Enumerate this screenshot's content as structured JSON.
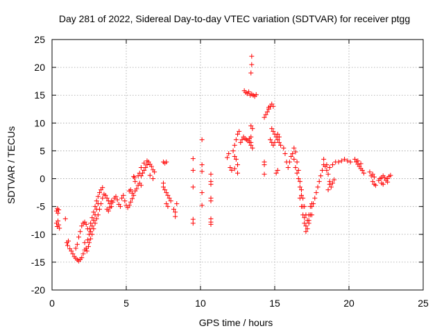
{
  "chart_data": {
    "type": "scatter",
    "title": "Day 281 of 2022, Sidereal Day-to-day VTEC variation (SDTVAR) for receiver ptgg",
    "xlabel": "GPS time / hours",
    "ylabel": "SDTVAR / TECUs",
    "xlim": [
      0,
      25
    ],
    "ylim": [
      -20,
      25
    ],
    "xticks": [
      0,
      5,
      10,
      15,
      20,
      25
    ],
    "yticks": [
      -20,
      -15,
      -10,
      -5,
      0,
      5,
      10,
      15,
      20,
      25
    ],
    "grid": true,
    "marker": "+",
    "color": "#ff0000",
    "series": [
      {
        "name": "SDTVAR",
        "points": [
          [
            0.3,
            -5.8
          ],
          [
            0.35,
            -5.4
          ],
          [
            0.4,
            -6.2
          ],
          [
            0.45,
            -5.6
          ],
          [
            0.3,
            -8.0
          ],
          [
            0.35,
            -8.6
          ],
          [
            0.4,
            -7.6
          ],
          [
            0.45,
            -8.3
          ],
          [
            0.5,
            -8.9
          ],
          [
            0.9,
            -7.2
          ],
          [
            1.0,
            -11.5
          ],
          [
            1.05,
            -12.0
          ],
          [
            1.1,
            -11.2
          ],
          [
            1.2,
            -12.6
          ],
          [
            1.3,
            -13.0
          ],
          [
            1.4,
            -13.5
          ],
          [
            1.5,
            -14.0
          ],
          [
            1.6,
            -14.3
          ],
          [
            1.7,
            -14.6
          ],
          [
            1.8,
            -14.8
          ],
          [
            1.9,
            -14.5
          ],
          [
            2.0,
            -14.2
          ],
          [
            2.1,
            -13.5
          ],
          [
            2.2,
            -12.8
          ],
          [
            1.6,
            -12.5
          ],
          [
            1.7,
            -11.8
          ],
          [
            1.8,
            -10.5
          ],
          [
            1.9,
            -9.5
          ],
          [
            2.0,
            -8.5
          ],
          [
            2.1,
            -8.0
          ],
          [
            2.2,
            -7.8
          ],
          [
            2.3,
            -8.2
          ],
          [
            2.4,
            -9.0
          ],
          [
            2.2,
            -11.5
          ],
          [
            2.3,
            -12.5
          ],
          [
            2.4,
            -11.0
          ],
          [
            2.5,
            -10.0
          ],
          [
            2.55,
            -9.0
          ],
          [
            2.6,
            -8.0
          ],
          [
            2.7,
            -7.0
          ],
          [
            2.8,
            -6.0
          ],
          [
            2.9,
            -5.0
          ],
          [
            3.0,
            -4.0
          ],
          [
            3.1,
            -3.2
          ],
          [
            3.2,
            -2.5
          ],
          [
            3.3,
            -2.0
          ],
          [
            3.4,
            -1.6
          ],
          [
            2.6,
            -9.5
          ],
          [
            2.7,
            -8.5
          ],
          [
            2.8,
            -7.5
          ],
          [
            2.9,
            -6.5
          ],
          [
            3.0,
            -5.5
          ],
          [
            3.1,
            -4.5
          ],
          [
            2.5,
            -11.5
          ],
          [
            2.6,
            -10.8
          ],
          [
            2.7,
            -10.0
          ],
          [
            2.8,
            -9.0
          ],
          [
            2.9,
            -8.0
          ],
          [
            3.0,
            -7.2
          ],
          [
            3.1,
            -6.5
          ],
          [
            3.2,
            -5.5
          ],
          [
            3.3,
            -4.5
          ],
          [
            3.4,
            -3.5
          ],
          [
            3.5,
            -2.8
          ],
          [
            2.35,
            -13.0
          ],
          [
            2.45,
            -12.2
          ],
          [
            3.6,
            -3.0
          ],
          [
            3.7,
            -3.5
          ],
          [
            3.8,
            -4.0
          ],
          [
            3.9,
            -4.5
          ],
          [
            4.0,
            -5.0
          ],
          [
            4.1,
            -4.2
          ],
          [
            4.2,
            -3.5
          ],
          [
            4.3,
            -3.2
          ],
          [
            4.4,
            -3.8
          ],
          [
            4.5,
            -4.6
          ],
          [
            4.6,
            -5.0
          ],
          [
            3.7,
            -5.5
          ],
          [
            3.8,
            -5.8
          ],
          [
            3.9,
            -5.2
          ],
          [
            4.0,
            -4.0
          ],
          [
            4.7,
            -3.5
          ],
          [
            4.8,
            -3.0
          ],
          [
            4.9,
            -4.0
          ],
          [
            5.0,
            -4.8
          ],
          [
            5.1,
            -5.2
          ],
          [
            5.2,
            -4.8
          ],
          [
            5.3,
            -4.2
          ],
          [
            5.4,
            -3.6
          ],
          [
            5.5,
            -3.0
          ],
          [
            5.6,
            -2.2
          ],
          [
            5.7,
            -1.8
          ],
          [
            5.8,
            -1.2
          ],
          [
            5.2,
            -2.2
          ],
          [
            5.3,
            -2.0
          ],
          [
            5.4,
            -2.6
          ],
          [
            5.6,
            -0.5
          ],
          [
            5.8,
            0.5
          ],
          [
            5.9,
            1.0
          ],
          [
            5.5,
            0.4
          ],
          [
            5.55,
            0.2
          ],
          [
            5.9,
            -0.8
          ],
          [
            6.0,
            -1.2
          ],
          [
            6.0,
            0.5
          ],
          [
            6.1,
            1.0
          ],
          [
            6.2,
            1.5
          ],
          [
            6.3,
            2.0
          ],
          [
            6.4,
            2.5
          ],
          [
            6.5,
            3.0
          ],
          [
            6.6,
            2.6
          ],
          [
            6.7,
            2.2
          ],
          [
            6.8,
            1.6
          ],
          [
            6.9,
            1.2
          ],
          [
            6.0,
            2.0
          ],
          [
            6.2,
            2.8
          ],
          [
            6.4,
            3.2
          ],
          [
            6.6,
            0.6
          ],
          [
            6.8,
            0.0
          ],
          [
            7.5,
            3.0
          ],
          [
            7.6,
            2.8
          ],
          [
            7.7,
            3.0
          ],
          [
            7.5,
            -1.5
          ],
          [
            7.6,
            -2.0
          ],
          [
            7.7,
            -2.5
          ],
          [
            7.8,
            -3.0
          ],
          [
            7.9,
            -3.5
          ],
          [
            7.5,
            -0.8
          ],
          [
            7.7,
            -4.5
          ],
          [
            7.8,
            -5.0
          ],
          [
            8.0,
            -4.0
          ],
          [
            8.2,
            -5.5
          ],
          [
            8.3,
            -6.8
          ],
          [
            8.4,
            -4.5
          ],
          [
            8.3,
            -6.0
          ],
          [
            9.5,
            3.6
          ],
          [
            9.5,
            1.5
          ],
          [
            9.5,
            -1.5
          ],
          [
            9.5,
            -7.3
          ],
          [
            9.5,
            -8.0
          ],
          [
            10.1,
            7.0
          ],
          [
            10.1,
            2.5
          ],
          [
            10.1,
            1.3
          ],
          [
            10.1,
            -2.5
          ],
          [
            10.1,
            -4.8
          ],
          [
            10.7,
            0.8
          ],
          [
            10.7,
            -0.5
          ],
          [
            10.7,
            -1.0
          ],
          [
            10.7,
            -3.5
          ],
          [
            10.7,
            -4.0
          ],
          [
            10.7,
            -7.2
          ],
          [
            10.7,
            -7.8
          ],
          [
            10.7,
            -8.2
          ],
          [
            11.8,
            3.8
          ],
          [
            11.9,
            4.5
          ],
          [
            12.0,
            2.0
          ],
          [
            12.1,
            1.5
          ],
          [
            12.2,
            5.0
          ],
          [
            12.3,
            6.0
          ],
          [
            12.4,
            7.0
          ],
          [
            12.5,
            8.0
          ],
          [
            12.6,
            8.5
          ],
          [
            12.3,
            4.0
          ],
          [
            12.4,
            3.5
          ],
          [
            12.5,
            2.5
          ],
          [
            12.3,
            1.8
          ],
          [
            12.5,
            1.0
          ],
          [
            12.7,
            6.5
          ],
          [
            12.8,
            7.0
          ],
          [
            12.9,
            7.5
          ],
          [
            13.0,
            7.2
          ],
          [
            13.1,
            7.0
          ],
          [
            13.2,
            6.8
          ],
          [
            13.3,
            6.5
          ],
          [
            13.4,
            6.0
          ],
          [
            13.5,
            5.5
          ],
          [
            13.4,
            7.5
          ],
          [
            13.3,
            7.2
          ],
          [
            13.4,
            6.5
          ],
          [
            12.95,
            15.8
          ],
          [
            13.05,
            15.5
          ],
          [
            13.15,
            15.3
          ],
          [
            13.25,
            15.6
          ],
          [
            13.35,
            15.0
          ],
          [
            13.45,
            15.2
          ],
          [
            13.55,
            15.0
          ],
          [
            13.65,
            14.8
          ],
          [
            13.75,
            15.1
          ],
          [
            13.4,
            19.0
          ],
          [
            13.45,
            20.5
          ],
          [
            13.45,
            22.0
          ],
          [
            13.4,
            9.5
          ],
          [
            13.5,
            9.0
          ],
          [
            14.3,
            11.0
          ],
          [
            14.4,
            11.5
          ],
          [
            14.5,
            12.0
          ],
          [
            14.6,
            12.5
          ],
          [
            14.7,
            13.0
          ],
          [
            14.8,
            13.4
          ],
          [
            14.9,
            13.0
          ],
          [
            14.6,
            12.8
          ],
          [
            14.8,
            9.0
          ],
          [
            14.9,
            8.5
          ],
          [
            15.0,
            8.0
          ],
          [
            15.1,
            7.5
          ],
          [
            15.2,
            7.0
          ],
          [
            15.3,
            6.5
          ],
          [
            15.4,
            6.0
          ],
          [
            14.7,
            7.0
          ],
          [
            14.8,
            6.5
          ],
          [
            14.9,
            6.0
          ],
          [
            15.0,
            6.5
          ],
          [
            15.2,
            8.0
          ],
          [
            15.3,
            7.5
          ],
          [
            14.3,
            3.0
          ],
          [
            14.3,
            2.5
          ],
          [
            14.3,
            0.8
          ],
          [
            15.1,
            1.0
          ],
          [
            15.2,
            1.5
          ],
          [
            15.6,
            5.5
          ],
          [
            15.7,
            4.5
          ],
          [
            15.8,
            3.0
          ],
          [
            15.9,
            2.0
          ],
          [
            16.0,
            3.0
          ],
          [
            16.1,
            4.0
          ],
          [
            16.2,
            4.5
          ],
          [
            16.3,
            3.5
          ],
          [
            16.4,
            2.0
          ],
          [
            16.5,
            1.0
          ],
          [
            16.6,
            0.0
          ],
          [
            16.7,
            -1.5
          ],
          [
            16.8,
            -3.0
          ],
          [
            16.9,
            -5.0
          ],
          [
            17.0,
            -7.0
          ],
          [
            17.1,
            -8.5
          ],
          [
            17.2,
            -9.0
          ],
          [
            17.3,
            -8.0
          ],
          [
            17.4,
            -6.5
          ],
          [
            17.5,
            -5.0
          ],
          [
            16.3,
            5.5
          ],
          [
            16.4,
            4.8
          ],
          [
            16.5,
            3.0
          ],
          [
            16.6,
            1.5
          ],
          [
            16.7,
            -0.5
          ],
          [
            16.8,
            -2.0
          ],
          [
            16.9,
            -3.5
          ],
          [
            17.0,
            -5.0
          ],
          [
            17.1,
            -6.5
          ],
          [
            17.2,
            -7.5
          ],
          [
            17.3,
            -6.5
          ],
          [
            17.4,
            -5.0
          ],
          [
            17.5,
            -4.5
          ],
          [
            16.7,
            -3.5
          ],
          [
            16.8,
            -5.0
          ],
          [
            16.9,
            -6.5
          ],
          [
            17.0,
            -8.0
          ],
          [
            17.1,
            -9.5
          ],
          [
            17.3,
            -7.5
          ],
          [
            17.5,
            -6.5
          ],
          [
            17.6,
            -4.5
          ],
          [
            17.7,
            -3.5
          ],
          [
            17.8,
            -2.5
          ],
          [
            17.9,
            -1.5
          ],
          [
            18.0,
            -0.5
          ],
          [
            18.1,
            0.5
          ],
          [
            18.2,
            1.5
          ],
          [
            18.3,
            2.5
          ],
          [
            18.4,
            2.2
          ],
          [
            18.5,
            1.5
          ],
          [
            18.6,
            0.8
          ],
          [
            18.7,
            -0.5
          ],
          [
            18.8,
            -1.5
          ],
          [
            18.9,
            -0.8
          ],
          [
            19.0,
            -0.2
          ],
          [
            18.3,
            3.5
          ],
          [
            18.5,
            2.5
          ],
          [
            18.7,
            2.0
          ],
          [
            18.9,
            2.5
          ],
          [
            19.1,
            3.0
          ],
          [
            19.3,
            3.0
          ],
          [
            19.5,
            3.2
          ],
          [
            19.7,
            3.5
          ],
          [
            19.9,
            3.2
          ],
          [
            20.1,
            3.0
          ],
          [
            20.4,
            3.5
          ],
          [
            20.5,
            3.0
          ],
          [
            20.6,
            2.6
          ],
          [
            20.7,
            2.2
          ],
          [
            20.8,
            1.8
          ],
          [
            20.9,
            1.5
          ],
          [
            21.0,
            1.0
          ],
          [
            20.6,
            3.2
          ],
          [
            20.8,
            2.7
          ],
          [
            21.4,
            1.2
          ],
          [
            21.5,
            0.5
          ],
          [
            21.6,
            -0.5
          ],
          [
            21.7,
            -1.0
          ],
          [
            21.8,
            -1.2
          ],
          [
            21.6,
            0.8
          ],
          [
            21.7,
            0.3
          ],
          [
            22.0,
            -0.3
          ],
          [
            22.1,
            0.0
          ],
          [
            22.2,
            0.2
          ],
          [
            22.3,
            0.5
          ],
          [
            22.4,
            0.2
          ],
          [
            22.5,
            -0.3
          ],
          [
            22.6,
            0.0
          ],
          [
            22.7,
            0.4
          ],
          [
            22.8,
            0.6
          ],
          [
            22.2,
            -0.8
          ],
          [
            22.3,
            -1.0
          ],
          [
            22.6,
            -0.6
          ],
          [
            18.6,
            -2.0
          ],
          [
            18.7,
            -1.0
          ]
        ]
      }
    ]
  }
}
